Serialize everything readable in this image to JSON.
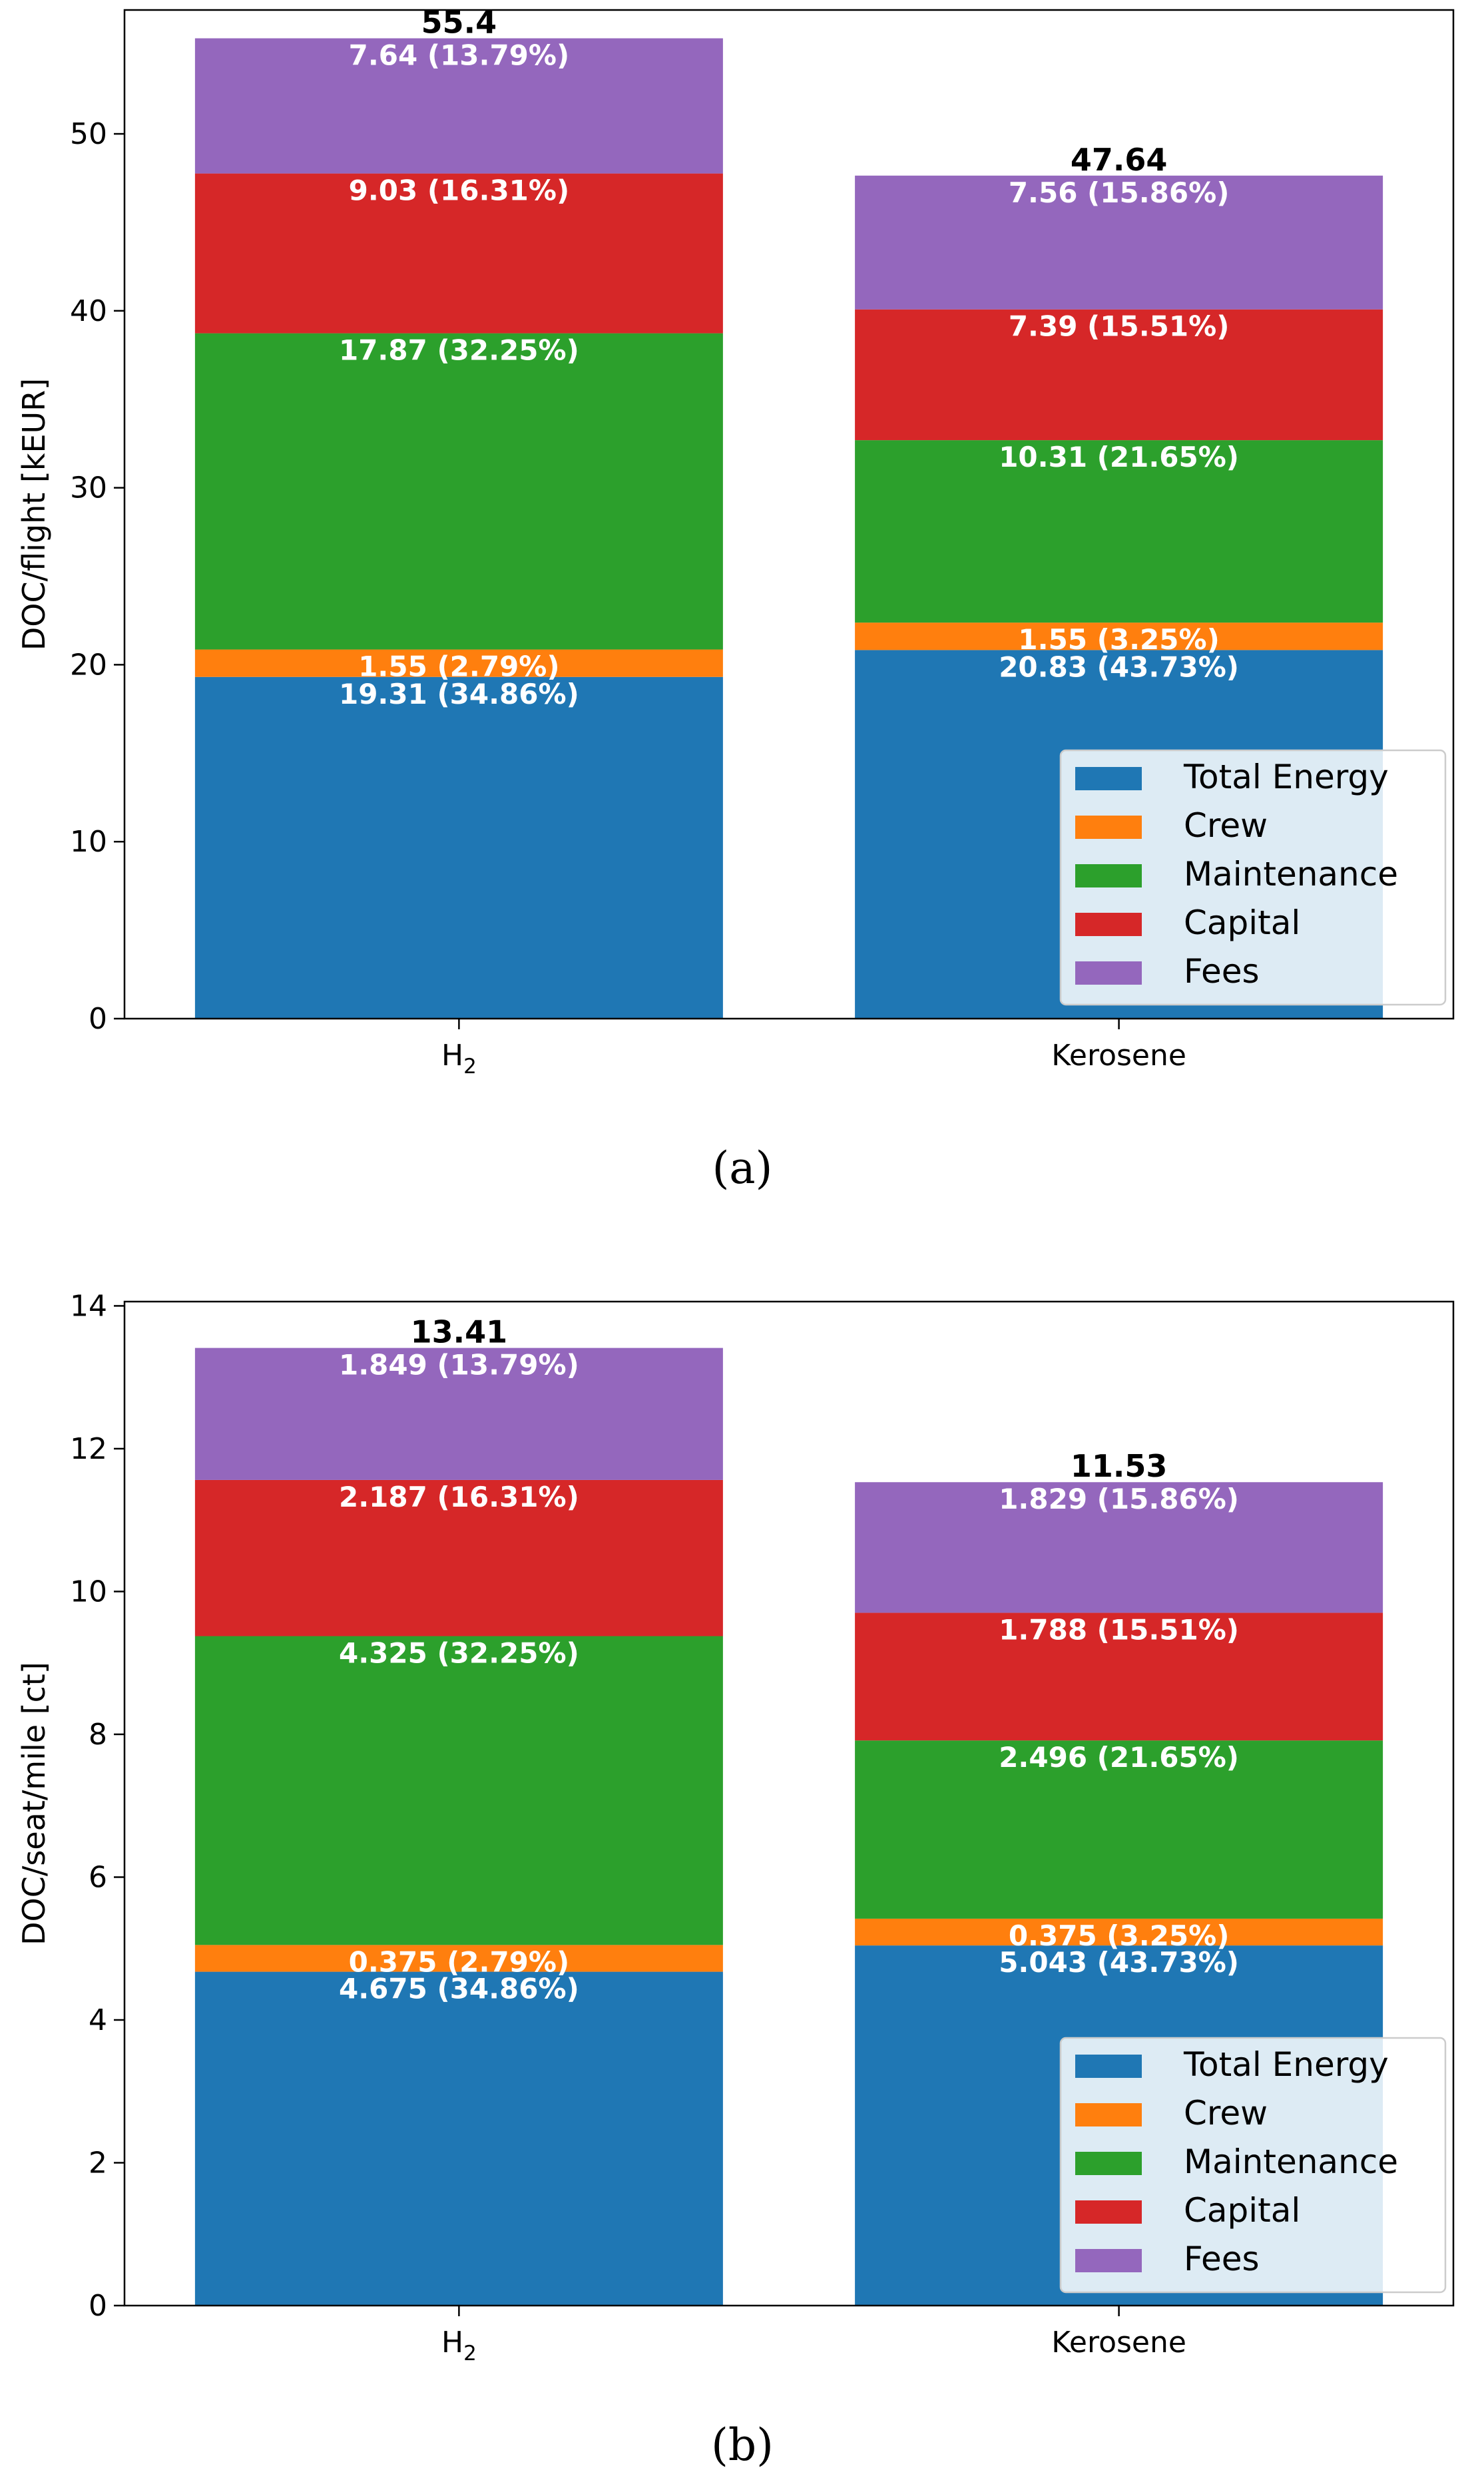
{
  "colors": {
    "Total Energy": "#1f77b4",
    "Crew": "#ff7f0e",
    "Maintenance": "#2ca02c",
    "Capital": "#d62728",
    "Fees": "#9467bd"
  },
  "chart_data": [
    {
      "type": "bar",
      "stacked": true,
      "caption": "(a)",
      "categories": [
        "H2",
        "Kerosene"
      ],
      "ylabel": "DOC/flight [kEUR]",
      "ylim": [
        0,
        57
      ],
      "yticks": [
        0,
        10,
        20,
        30,
        40,
        50
      ],
      "totals": [
        "55.4",
        "47.64"
      ],
      "legend_position": "lower-right",
      "series": [
        {
          "name": "Total Energy",
          "values": [
            19.31,
            20.83
          ],
          "labels": [
            "19.31 (34.86%)",
            "20.83 (43.73%)"
          ]
        },
        {
          "name": "Crew",
          "values": [
            1.55,
            1.55
          ],
          "labels": [
            "1.55 (2.79%)",
            "1.55 (3.25%)"
          ]
        },
        {
          "name": "Maintenance",
          "values": [
            17.87,
            10.31
          ],
          "labels": [
            "17.87 (32.25%)",
            "10.31 (21.65%)"
          ]
        },
        {
          "name": "Capital",
          "values": [
            9.03,
            7.39
          ],
          "labels": [
            "9.03 (16.31%)",
            "7.39 (15.51%)"
          ]
        },
        {
          "name": "Fees",
          "values": [
            7.64,
            7.56
          ],
          "labels": [
            "7.64 (13.79%)",
            "7.56 (15.86%)"
          ]
        }
      ]
    },
    {
      "type": "bar",
      "stacked": true,
      "caption": "(b)",
      "categories": [
        "H2",
        "Kerosene"
      ],
      "ylabel": "DOC/seat/mile [ct]",
      "ylim": [
        0,
        14.06
      ],
      "yticks": [
        0,
        2,
        4,
        6,
        8,
        10,
        12,
        14
      ],
      "totals": [
        "13.41",
        "11.53"
      ],
      "legend_position": "lower-right",
      "series": [
        {
          "name": "Total Energy",
          "values": [
            4.675,
            5.043
          ],
          "labels": [
            "4.675 (34.86%)",
            "5.043 (43.73%)"
          ]
        },
        {
          "name": "Crew",
          "values": [
            0.375,
            0.375
          ],
          "labels": [
            "0.375 (2.79%)",
            "0.375 (3.25%)"
          ]
        },
        {
          "name": "Maintenance",
          "values": [
            4.325,
            2.496
          ],
          "labels": [
            "4.325 (32.25%)",
            "2.496 (21.65%)"
          ]
        },
        {
          "name": "Capital",
          "values": [
            2.187,
            1.788
          ],
          "labels": [
            "2.187 (16.31%)",
            "1.788 (15.51%)"
          ]
        },
        {
          "name": "Fees",
          "values": [
            1.849,
            1.829
          ],
          "labels": [
            "1.849 (13.79%)",
            "1.829 (15.86%)"
          ]
        }
      ]
    }
  ]
}
